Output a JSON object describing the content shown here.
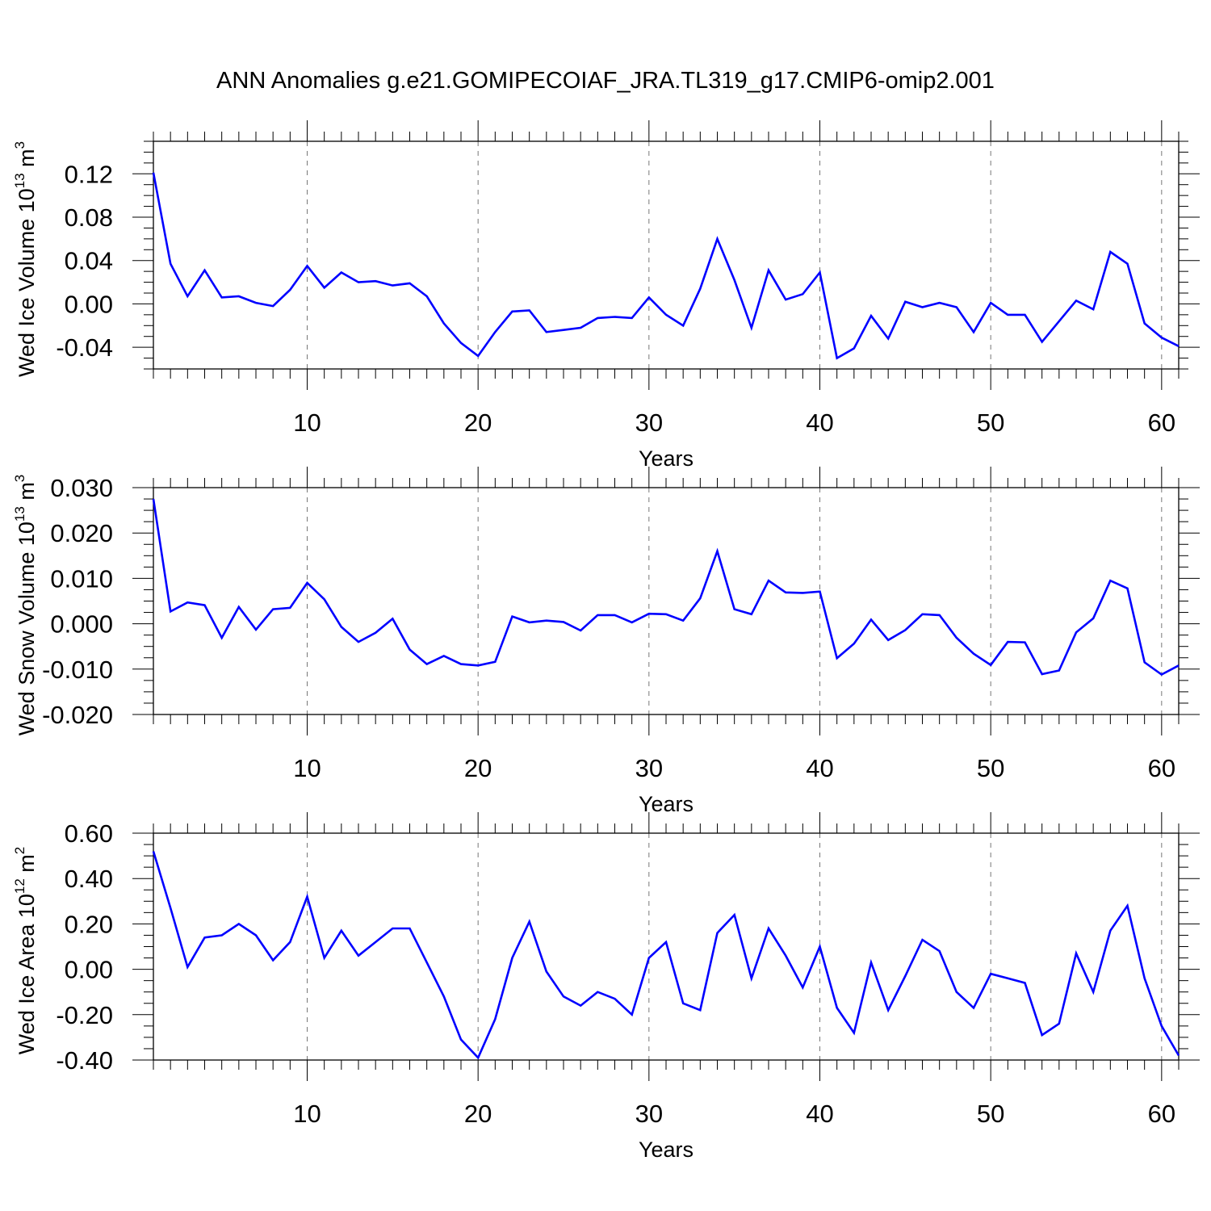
{
  "title": "ANN Anomalies g.e21.GOMIPECOIAF_JRA.TL319_g17.CMIP6-omip2.001",
  "chart_data": [
    {
      "type": "line",
      "ylabel": {
        "text": "Wed Ice Volume 10",
        "exponent": "13",
        "unit": " m",
        "unit_exponent": "3"
      },
      "xlabel": "Years",
      "xlim": [
        1,
        61
      ],
      "ylim": [
        -0.06,
        0.15
      ],
      "y_ticks": [
        -0.04,
        0.0,
        0.04,
        0.08,
        0.12
      ],
      "y_tick_labels": [
        "-0.04",
        "0.00",
        "0.04",
        "0.08",
        "0.12"
      ],
      "x_ticks": [
        10,
        20,
        30,
        40,
        50,
        60
      ],
      "x_tick_labels": [
        "10",
        "20",
        "30",
        "40",
        "50",
        "60"
      ],
      "grid": "vertical dashed at major x ticks",
      "color": "#0000ff",
      "x": [
        1,
        2,
        3,
        4,
        5,
        6,
        7,
        8,
        9,
        10,
        11,
        12,
        13,
        14,
        15,
        16,
        17,
        18,
        19,
        20,
        21,
        22,
        23,
        24,
        25,
        26,
        27,
        28,
        29,
        30,
        31,
        32,
        33,
        34,
        35,
        36,
        37,
        38,
        39,
        40,
        41,
        42,
        43,
        44,
        45,
        46,
        47,
        48,
        49,
        50,
        51,
        52,
        53,
        54,
        55,
        56,
        57,
        58,
        59,
        60,
        61
      ],
      "values": [
        0.121,
        0.037,
        0.007,
        0.031,
        0.006,
        0.007,
        0.001,
        -0.002,
        0.013,
        0.035,
        0.015,
        0.029,
        0.02,
        0.021,
        0.017,
        0.019,
        0.007,
        -0.018,
        -0.036,
        -0.048,
        -0.026,
        -0.007,
        -0.006,
        -0.026,
        -0.024,
        -0.022,
        -0.013,
        -0.012,
        -0.013,
        0.006,
        -0.01,
        -0.02,
        0.014,
        0.06,
        0.022,
        -0.022,
        0.031,
        0.004,
        0.009,
        0.029,
        -0.05,
        -0.041,
        -0.011,
        -0.032,
        0.002,
        -0.003,
        0.001,
        -0.003,
        -0.026,
        0.001,
        -0.01,
        -0.01,
        -0.035,
        -0.016,
        0.003,
        -0.005,
        0.048,
        0.037,
        -0.018,
        -0.031,
        -0.039
      ]
    },
    {
      "type": "line",
      "ylabel": {
        "text": "Wed Snow Volume 10",
        "exponent": "13",
        "unit": " m",
        "unit_exponent": "3"
      },
      "xlabel": "Years",
      "xlim": [
        1,
        61
      ],
      "ylim": [
        -0.02,
        0.03
      ],
      "y_ticks": [
        -0.02,
        -0.01,
        0.0,
        0.01,
        0.02,
        0.03
      ],
      "y_tick_labels": [
        "-0.020",
        "-0.010",
        "0.000",
        "0.010",
        "0.020",
        "0.030"
      ],
      "x_ticks": [
        10,
        20,
        30,
        40,
        50,
        60
      ],
      "x_tick_labels": [
        "10",
        "20",
        "30",
        "40",
        "50",
        "60"
      ],
      "grid": "vertical dashed at major x ticks",
      "color": "#0000ff",
      "x": [
        1,
        2,
        3,
        4,
        5,
        6,
        7,
        8,
        9,
        10,
        11,
        12,
        13,
        14,
        15,
        16,
        17,
        18,
        19,
        20,
        21,
        22,
        23,
        24,
        25,
        26,
        27,
        28,
        29,
        30,
        31,
        32,
        33,
        34,
        35,
        36,
        37,
        38,
        39,
        40,
        41,
        42,
        43,
        44,
        45,
        46,
        47,
        48,
        49,
        50,
        51,
        52,
        53,
        54,
        55,
        56,
        57,
        58,
        59,
        60,
        61
      ],
      "values": [
        0.0275,
        0.0027,
        0.0047,
        0.0041,
        -0.0031,
        0.0037,
        -0.0013,
        0.0032,
        0.0035,
        0.009,
        0.0054,
        -0.0007,
        -0.004,
        -0.002,
        0.0011,
        -0.0057,
        -0.0089,
        -0.0071,
        -0.0089,
        -0.0092,
        -0.0084,
        0.0016,
        0.0003,
        0.0007,
        0.0004,
        -0.0015,
        0.0019,
        0.0019,
        0.0003,
        0.0022,
        0.0021,
        0.0007,
        0.0056,
        0.016,
        0.0032,
        0.0021,
        0.0095,
        0.0069,
        0.0068,
        0.0071,
        -0.0076,
        -0.0044,
        0.0009,
        -0.0036,
        -0.0014,
        0.0021,
        0.0019,
        -0.0031,
        -0.0066,
        -0.0091,
        -0.004,
        -0.0041,
        -0.0111,
        -0.0103,
        -0.0019,
        0.0012,
        0.0095,
        0.0078,
        -0.0085,
        -0.0112,
        -0.0092
      ]
    },
    {
      "type": "line",
      "ylabel": {
        "text": "Wed Ice Area 10",
        "exponent": "12",
        "unit": " m",
        "unit_exponent": "2"
      },
      "xlabel": "Years",
      "xlim": [
        1,
        61
      ],
      "ylim": [
        -0.4,
        0.6
      ],
      "y_ticks": [
        -0.4,
        -0.2,
        0.0,
        0.2,
        0.4,
        0.6
      ],
      "y_tick_labels": [
        "-0.40",
        "-0.20",
        "0.00",
        "0.20",
        "0.40",
        "0.60"
      ],
      "x_ticks": [
        10,
        20,
        30,
        40,
        50,
        60
      ],
      "x_tick_labels": [
        "10",
        "20",
        "30",
        "40",
        "50",
        "60"
      ],
      "grid": "vertical dashed at major x ticks",
      "color": "#0000ff",
      "x": [
        1,
        2,
        3,
        4,
        5,
        6,
        7,
        8,
        9,
        10,
        11,
        12,
        13,
        14,
        15,
        16,
        17,
        18,
        19,
        20,
        21,
        22,
        23,
        24,
        25,
        26,
        27,
        28,
        29,
        30,
        31,
        32,
        33,
        34,
        35,
        36,
        37,
        38,
        39,
        40,
        41,
        42,
        43,
        44,
        45,
        46,
        47,
        48,
        49,
        50,
        51,
        52,
        53,
        54,
        55,
        56,
        57,
        58,
        59,
        60,
        61
      ],
      "values": [
        0.52,
        0.27,
        0.01,
        0.14,
        0.15,
        0.2,
        0.15,
        0.04,
        0.12,
        0.32,
        0.05,
        0.17,
        0.06,
        0.12,
        0.18,
        0.18,
        0.03,
        -0.12,
        -0.31,
        -0.39,
        -0.22,
        0.05,
        0.21,
        -0.01,
        -0.12,
        -0.16,
        -0.1,
        -0.13,
        -0.2,
        0.05,
        0.12,
        -0.15,
        -0.18,
        0.16,
        0.24,
        -0.04,
        0.18,
        0.06,
        -0.08,
        0.1,
        -0.17,
        -0.28,
        0.03,
        -0.18,
        -0.03,
        0.13,
        0.08,
        -0.1,
        -0.17,
        -0.02,
        -0.04,
        -0.06,
        -0.29,
        -0.24,
        0.07,
        -0.1,
        0.17,
        0.28,
        -0.04,
        -0.25,
        -0.38
      ]
    }
  ]
}
